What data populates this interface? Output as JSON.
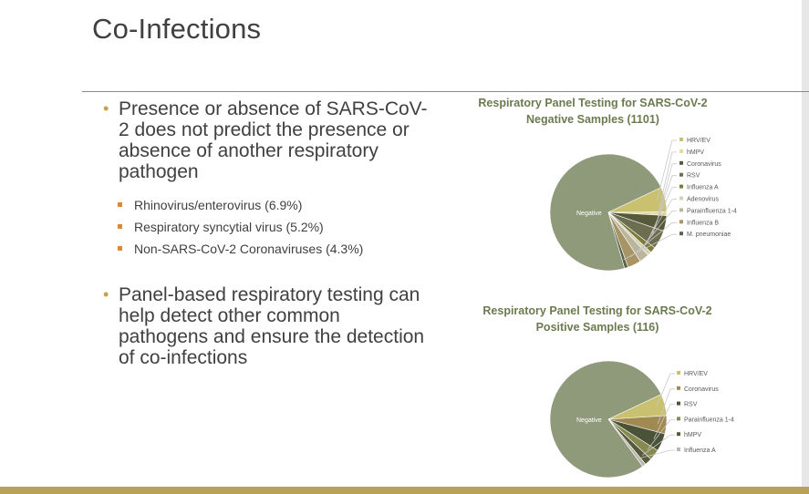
{
  "slide": {
    "title": "Co-Infections",
    "bullets": [
      {
        "text": "Presence or absence of SARS-CoV-2 does not predict the presence or absence of another respiratory pathogen",
        "sub": [
          "Rhinovirus/enterovirus (6.9%)",
          "Respiratory syncytial virus (5.2%)",
          "Non-SARS-CoV-2 Coronaviruses (4.3%)"
        ]
      },
      {
        "text": "Panel-based respiratory testing can help detect other common pathogens and ensure the detection of co-infections",
        "sub": []
      }
    ]
  },
  "chart_data": [
    {
      "type": "pie",
      "title": "Respiratory Panel Testing for SARS-CoV-2 Negative Samples (1101)",
      "categories": [
        "Negative",
        "HRV/EV",
        "hMPV",
        "Coronavirus",
        "RSV",
        "Influenza A",
        "Adenovirus",
        "Parainfluenza 1-4",
        "Influenza B",
        "M. pneumoniae"
      ],
      "values": [
        72.5,
        6.9,
        1.0,
        4.3,
        5.2,
        1.6,
        1.1,
        2.7,
        3.7,
        1.0
      ],
      "colors": [
        "#8f9a7b",
        "#c9c070",
        "#e3dba0",
        "#575a3a",
        "#6b6f50",
        "#7e7a3c",
        "#d4d0b4",
        "#b9b69d",
        "#a89566",
        "#5d6149"
      ],
      "legend_position": "right",
      "data_labels": [
        "Negative"
      ]
    },
    {
      "type": "pie",
      "title": "Respiratory Panel Testing for SARS-CoV-2 Positive Samples (116)",
      "categories": [
        "Negative",
        "HRV/EV",
        "Coronavirus",
        "RSV",
        "Parainfluenza 1-4",
        "hMPV",
        "Influenza A"
      ],
      "values": [
        78,
        6,
        5,
        5,
        3,
        2,
        1
      ],
      "colors": [
        "#8f9a7b",
        "#c9c070",
        "#a08a52",
        "#4a5238",
        "#878a50",
        "#575a3a",
        "#b8b8b0"
      ],
      "legend_position": "right",
      "data_labels": [
        "Negative"
      ]
    }
  ]
}
